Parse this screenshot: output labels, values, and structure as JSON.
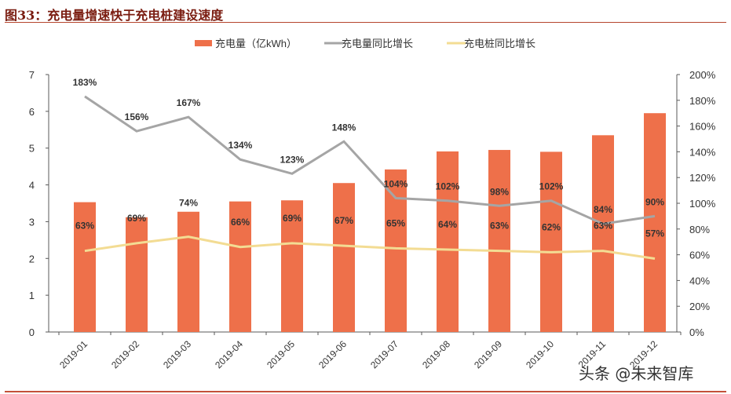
{
  "title": "图33：充电量增速快于充电桩建设速度",
  "watermark": "头条 @未来智库",
  "colors": {
    "bar": "#ee704a",
    "line1": "#a5a5a5",
    "line2": "#f3dc93",
    "title": "#7a1c10",
    "rule": "#b5452d"
  },
  "chart_data": {
    "type": "bar+line",
    "title": "",
    "categories": [
      "2019-01",
      "2019-02",
      "2019-03",
      "2019-04",
      "2019-05",
      "2019-06",
      "2019-07",
      "2019-08",
      "2019-09",
      "2019-10",
      "2019-11",
      "2019-12"
    ],
    "legend_position": "top",
    "grid": false,
    "y_left": {
      "range": [
        0,
        7
      ],
      "ticks": [
        "0",
        "1",
        "2",
        "3",
        "4",
        "5",
        "6",
        "7"
      ]
    },
    "y_right": {
      "range": [
        0,
        200
      ],
      "ticks": [
        "0%",
        "20%",
        "40%",
        "60%",
        "80%",
        "100%",
        "120%",
        "140%",
        "160%",
        "180%",
        "200%"
      ]
    },
    "series": [
      {
        "name": "充电量（亿kWh）",
        "type": "bar",
        "axis": "left",
        "values": [
          3.53,
          3.12,
          3.27,
          3.55,
          3.58,
          4.05,
          4.42,
          4.91,
          4.95,
          4.9,
          5.35,
          5.95
        ]
      },
      {
        "name": "充电量同比增长",
        "type": "line",
        "axis": "right",
        "values": [
          183,
          156,
          167,
          134,
          123,
          148,
          104,
          102,
          98,
          102,
          84,
          90
        ],
        "labels": [
          "183%",
          "156%",
          "167%",
          "134%",
          "123%",
          "148%",
          "104%",
          "102%",
          "98%",
          "102%",
          "84%",
          "90%"
        ]
      },
      {
        "name": "充电桩同比增长",
        "type": "line",
        "axis": "right",
        "values": [
          63,
          69,
          74,
          66,
          69,
          67,
          65,
          64,
          63,
          62,
          63,
          57
        ],
        "labels": [
          "63%",
          "69%",
          "74%",
          "66%",
          "69%",
          "67%",
          "65%",
          "64%",
          "63%",
          "62%",
          "63%",
          "57%"
        ]
      }
    ]
  }
}
